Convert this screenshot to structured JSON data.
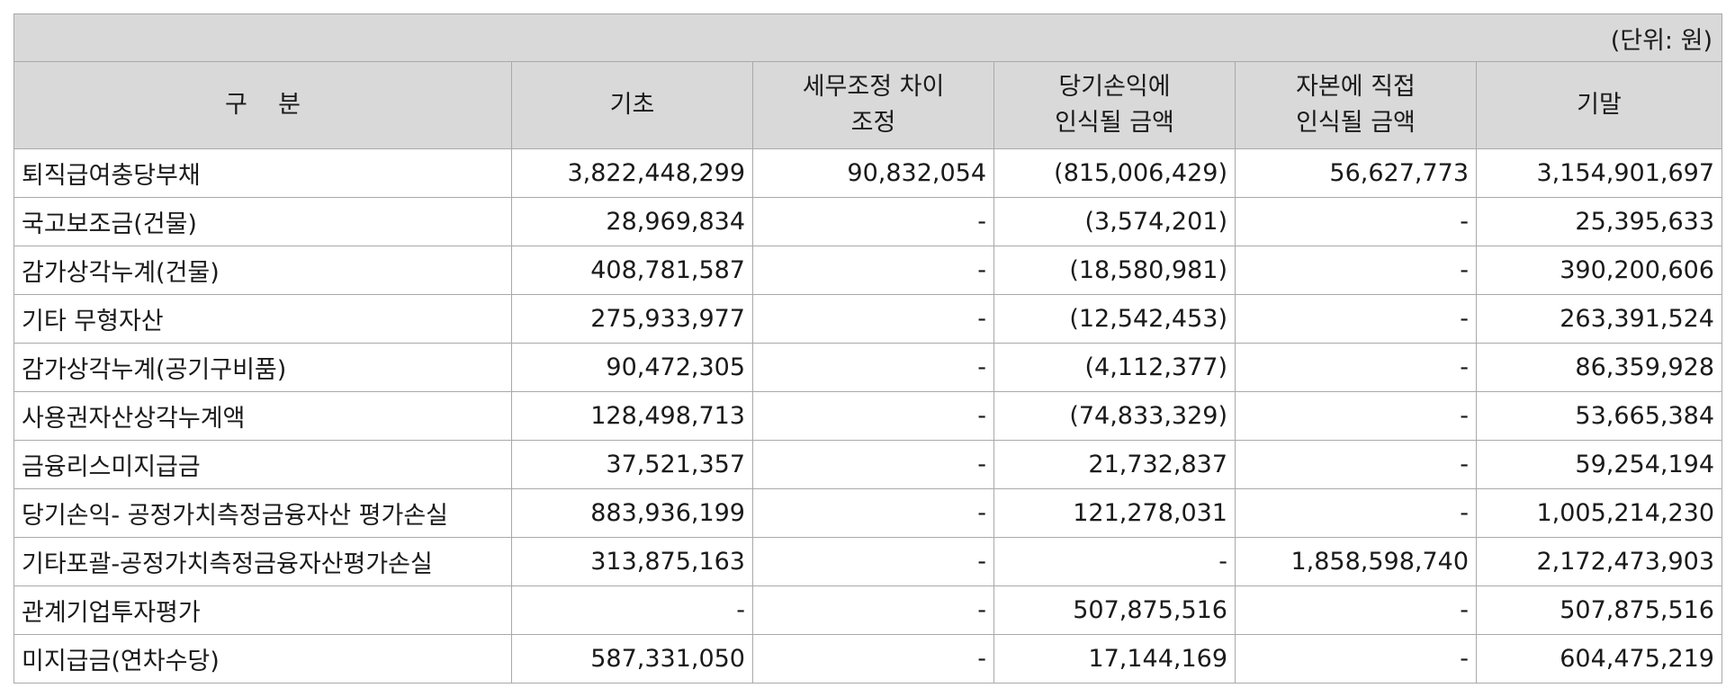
{
  "unit_label": "(단위: 원)",
  "headers": {
    "col0": "구    분",
    "col1": "기초",
    "col2_line1": "세무조정 차이",
    "col2_line2": "조정",
    "col3_line1": "당기손익에",
    "col3_line2": "인식될 금액",
    "col4_line1": "자본에 직접",
    "col4_line2": "인식될 금액",
    "col5": "기말"
  },
  "rows": [
    {
      "label": "퇴직급여충당부채",
      "beginning": "3,822,448,299",
      "tax_adj": "90,832,054",
      "pl": "(815,006,429)",
      "equity": "56,627,773",
      "ending": "3,154,901,697"
    },
    {
      "label": "국고보조금(건물)",
      "beginning": "28,969,834",
      "tax_adj": "-",
      "pl": "(3,574,201)",
      "equity": "-",
      "ending": "25,395,633"
    },
    {
      "label": "감가상각누계(건물)",
      "beginning": "408,781,587",
      "tax_adj": "-",
      "pl": "(18,580,981)",
      "equity": "-",
      "ending": "390,200,606"
    },
    {
      "label": "기타 무형자산",
      "beginning": "275,933,977",
      "tax_adj": "-",
      "pl": "(12,542,453)",
      "equity": "-",
      "ending": "263,391,524"
    },
    {
      "label": "감가상각누계(공기구비품)",
      "beginning": "90,472,305",
      "tax_adj": "-",
      "pl": "(4,112,377)",
      "equity": "-",
      "ending": "86,359,928"
    },
    {
      "label": "사용권자산상각누계액",
      "beginning": "128,498,713",
      "tax_adj": "-",
      "pl": "(74,833,329)",
      "equity": "-",
      "ending": "53,665,384"
    },
    {
      "label": "금융리스미지급금",
      "beginning": "37,521,357",
      "tax_adj": "-",
      "pl": "21,732,837",
      "equity": "-",
      "ending": "59,254,194"
    },
    {
      "label": "당기손익- 공정가치측정금융자산 평가손실",
      "beginning": "883,936,199",
      "tax_adj": "-",
      "pl": "121,278,031",
      "equity": "-",
      "ending": "1,005,214,230"
    },
    {
      "label": "기타포괄-공정가치측정금융자산평가손실",
      "beginning": "313,875,163",
      "tax_adj": "-",
      "pl": "-",
      "equity": "1,858,598,740",
      "ending": "2,172,473,903"
    },
    {
      "label": "관계기업투자평가",
      "beginning": "-",
      "tax_adj": "-",
      "pl": "507,875,516",
      "equity": "-",
      "ending": "507,875,516"
    },
    {
      "label": "미지급금(연차수당)",
      "beginning": "587,331,050",
      "tax_adj": "-",
      "pl": "17,144,169",
      "equity": "-",
      "ending": "604,475,219"
    }
  ]
}
